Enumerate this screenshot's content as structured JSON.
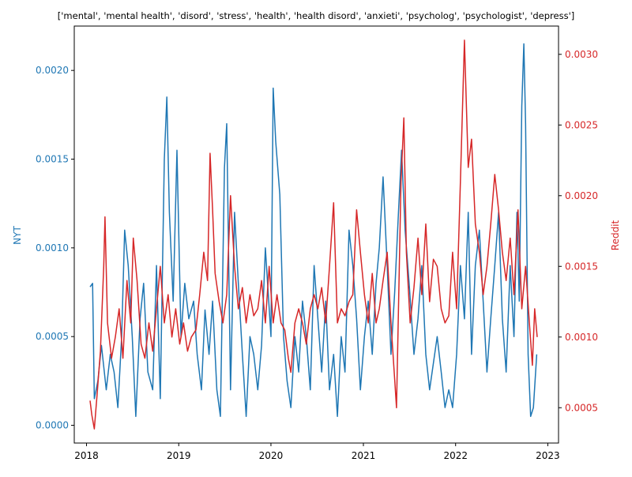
{
  "chart_data": {
    "type": "line",
    "title": "['mental', 'mental health', 'disord', 'stress', 'health', 'health disord', 'anxieti', 'psycholog', 'psychologist', 'depress']",
    "x_range": [
      "2018-01-15",
      "2022-11-20"
    ],
    "x_ticks": [
      "2018",
      "2019",
      "2020",
      "2021",
      "2022",
      "2023"
    ],
    "y_left": {
      "label": "NYT",
      "color": "#1f77b4",
      "ylim": [
        -0.0001,
        0.00225
      ],
      "ticks": [
        "0.0000",
        "0.0005",
        "0.0010",
        "0.0015",
        "0.0020"
      ]
    },
    "y_right": {
      "label": "Reddit",
      "color": "#d62728",
      "ylim": [
        0.00025,
        0.0032
      ],
      "ticks": [
        "0.0005",
        "0.0010",
        "0.0015",
        "0.0020",
        "0.0025",
        "0.0030"
      ]
    },
    "series": [
      {
        "name": "NYT",
        "axis": "left",
        "color": "#1f77b4",
        "points": [
          [
            "2018-01-15",
            0.00078
          ],
          [
            "2018-01-25",
            0.0008
          ],
          [
            "2018-02-01",
            0.00015
          ],
          [
            "2018-02-15",
            0.00025
          ],
          [
            "2018-03-01",
            0.00045
          ],
          [
            "2018-03-20",
            0.0002
          ],
          [
            "2018-04-05",
            0.0004
          ],
          [
            "2018-04-20",
            0.0003
          ],
          [
            "2018-05-05",
            0.0001
          ],
          [
            "2018-05-20",
            0.0005
          ],
          [
            "2018-06-01",
            0.0011
          ],
          [
            "2018-06-15",
            0.0009
          ],
          [
            "2018-07-01",
            0.0005
          ],
          [
            "2018-07-15",
            5e-05
          ],
          [
            "2018-08-01",
            0.0006
          ],
          [
            "2018-08-15",
            0.0008
          ],
          [
            "2018-09-01",
            0.0003
          ],
          [
            "2018-09-20",
            0.0002
          ],
          [
            "2018-10-05",
            0.0009
          ],
          [
            "2018-10-20",
            0.00015
          ],
          [
            "2018-11-05",
            0.0015
          ],
          [
            "2018-11-15",
            0.00185
          ],
          [
            "2018-11-25",
            0.0012
          ],
          [
            "2018-12-10",
            0.0007
          ],
          [
            "2018-12-25",
            0.00155
          ],
          [
            "2019-01-10",
            0.0005
          ],
          [
            "2019-01-25",
            0.0008
          ],
          [
            "2019-02-10",
            0.0006
          ],
          [
            "2019-03-01",
            0.0007
          ],
          [
            "2019-03-15",
            0.0004
          ],
          [
            "2019-04-01",
            0.0002
          ],
          [
            "2019-04-15",
            0.00065
          ],
          [
            "2019-05-01",
            0.0004
          ],
          [
            "2019-05-15",
            0.0007
          ],
          [
            "2019-06-01",
            0.0002
          ],
          [
            "2019-06-15",
            5e-05
          ],
          [
            "2019-07-01",
            0.00145
          ],
          [
            "2019-07-10",
            0.0017
          ],
          [
            "2019-07-25",
            0.0002
          ],
          [
            "2019-08-10",
            0.0012
          ],
          [
            "2019-08-25",
            0.0008
          ],
          [
            "2019-09-10",
            0.0004
          ],
          [
            "2019-09-25",
            5e-05
          ],
          [
            "2019-10-10",
            0.0005
          ],
          [
            "2019-10-25",
            0.0004
          ],
          [
            "2019-11-10",
            0.0002
          ],
          [
            "2019-11-25",
            0.00045
          ],
          [
            "2019-12-10",
            0.001
          ],
          [
            "2020-01-01",
            0.0005
          ],
          [
            "2020-01-10",
            0.0019
          ],
          [
            "2020-01-20",
            0.0016
          ],
          [
            "2020-02-05",
            0.0013
          ],
          [
            "2020-02-20",
            0.0005
          ],
          [
            "2020-03-05",
            0.00025
          ],
          [
            "2020-03-20",
            0.0001
          ],
          [
            "2020-04-05",
            0.0005
          ],
          [
            "2020-04-20",
            0.0003
          ],
          [
            "2020-05-05",
            0.0007
          ],
          [
            "2020-05-20",
            0.0005
          ],
          [
            "2020-06-05",
            0.0002
          ],
          [
            "2020-06-20",
            0.0009
          ],
          [
            "2020-07-05",
            0.0006
          ],
          [
            "2020-07-20",
            0.0003
          ],
          [
            "2020-08-05",
            0.0007
          ],
          [
            "2020-08-20",
            0.0002
          ],
          [
            "2020-09-05",
            0.0004
          ],
          [
            "2020-09-20",
            5e-05
          ],
          [
            "2020-10-05",
            0.0005
          ],
          [
            "2020-10-20",
            0.0003
          ],
          [
            "2020-11-05",
            0.0011
          ],
          [
            "2020-11-20",
            0.0009
          ],
          [
            "2020-12-05",
            0.0006
          ],
          [
            "2020-12-20",
            0.0002
          ],
          [
            "2021-01-05",
            0.0005
          ],
          [
            "2021-01-20",
            0.0007
          ],
          [
            "2021-02-05",
            0.0004
          ],
          [
            "2021-02-20",
            0.0008
          ],
          [
            "2021-03-05",
            0.001
          ],
          [
            "2021-03-20",
            0.0014
          ],
          [
            "2021-04-05",
            0.0009
          ],
          [
            "2021-04-20",
            0.0004
          ],
          [
            "2021-05-05",
            0.00075
          ],
          [
            "2021-05-20",
            0.0012
          ],
          [
            "2021-06-01",
            0.00155
          ],
          [
            "2021-06-15",
            0.0011
          ],
          [
            "2021-07-01",
            0.0008
          ],
          [
            "2021-07-20",
            0.0004
          ],
          [
            "2021-08-05",
            0.0006
          ],
          [
            "2021-08-20",
            0.0009
          ],
          [
            "2021-09-05",
            0.0004
          ],
          [
            "2021-09-20",
            0.0002
          ],
          [
            "2021-10-05",
            0.00035
          ],
          [
            "2021-10-20",
            0.0005
          ],
          [
            "2021-11-05",
            0.0003
          ],
          [
            "2021-11-20",
            0.0001
          ],
          [
            "2021-12-05",
            0.0002
          ],
          [
            "2021-12-20",
            0.0001
          ],
          [
            "2022-01-05",
            0.0004
          ],
          [
            "2022-01-20",
            0.0009
          ],
          [
            "2022-02-05",
            0.0006
          ],
          [
            "2022-02-20",
            0.0012
          ],
          [
            "2022-03-05",
            0.0004
          ],
          [
            "2022-03-20",
            0.0009
          ],
          [
            "2022-04-05",
            0.0011
          ],
          [
            "2022-04-20",
            0.0007
          ],
          [
            "2022-05-05",
            0.0003
          ],
          [
            "2022-05-20",
            0.0006
          ],
          [
            "2022-06-05",
            0.0009
          ],
          [
            "2022-06-20",
            0.0012
          ],
          [
            "2022-07-05",
            0.0006
          ],
          [
            "2022-07-20",
            0.0003
          ],
          [
            "2022-08-05",
            0.0009
          ],
          [
            "2022-08-20",
            0.0005
          ],
          [
            "2022-09-01",
            0.0012
          ],
          [
            "2022-09-10",
            0.0007
          ],
          [
            "2022-09-20",
            0.0018
          ],
          [
            "2022-09-28",
            0.00215
          ],
          [
            "2022-10-05",
            0.0017
          ],
          [
            "2022-10-15",
            0.0004
          ],
          [
            "2022-10-25",
            5e-05
          ],
          [
            "2022-11-05",
            0.0001
          ],
          [
            "2022-11-18",
            0.0004
          ]
        ]
      },
      {
        "name": "Reddit",
        "axis": "right",
        "color": "#d62728",
        "points": [
          [
            "2018-01-15",
            0.00055
          ],
          [
            "2018-01-22",
            0.00045
          ],
          [
            "2018-02-01",
            0.00035
          ],
          [
            "2018-02-12",
            0.0006
          ],
          [
            "2018-02-25",
            0.0009
          ],
          [
            "2018-03-10",
            0.0015
          ],
          [
            "2018-03-15",
            0.00185
          ],
          [
            "2018-03-25",
            0.0011
          ],
          [
            "2018-04-10",
            0.00085
          ],
          [
            "2018-04-25",
            0.001
          ],
          [
            "2018-05-10",
            0.0012
          ],
          [
            "2018-05-25",
            0.00085
          ],
          [
            "2018-06-10",
            0.0014
          ],
          [
            "2018-06-25",
            0.0011
          ],
          [
            "2018-07-05",
            0.0017
          ],
          [
            "2018-07-20",
            0.0014
          ],
          [
            "2018-08-05",
            0.00095
          ],
          [
            "2018-08-20",
            0.00085
          ],
          [
            "2018-09-05",
            0.0011
          ],
          [
            "2018-09-20",
            0.0009
          ],
          [
            "2018-10-05",
            0.0012
          ],
          [
            "2018-10-20",
            0.0015
          ],
          [
            "2018-11-05",
            0.0011
          ],
          [
            "2018-11-20",
            0.0013
          ],
          [
            "2018-12-05",
            0.001
          ],
          [
            "2018-12-20",
            0.0012
          ],
          [
            "2019-01-05",
            0.00095
          ],
          [
            "2019-01-20",
            0.0011
          ],
          [
            "2019-02-05",
            0.0009
          ],
          [
            "2019-02-20",
            0.001
          ],
          [
            "2019-03-10",
            0.00105
          ],
          [
            "2019-03-25",
            0.0013
          ],
          [
            "2019-04-10",
            0.0016
          ],
          [
            "2019-04-25",
            0.0014
          ],
          [
            "2019-05-05",
            0.0023
          ],
          [
            "2019-05-15",
            0.0019
          ],
          [
            "2019-05-25",
            0.00145
          ],
          [
            "2019-06-10",
            0.00125
          ],
          [
            "2019-06-25",
            0.0011
          ],
          [
            "2019-07-10",
            0.0013
          ],
          [
            "2019-07-25",
            0.002
          ],
          [
            "2019-08-10",
            0.0015
          ],
          [
            "2019-08-25",
            0.0012
          ],
          [
            "2019-09-10",
            0.00135
          ],
          [
            "2019-09-25",
            0.0011
          ],
          [
            "2019-10-10",
            0.0013
          ],
          [
            "2019-10-25",
            0.00115
          ],
          [
            "2019-11-10",
            0.0012
          ],
          [
            "2019-11-25",
            0.0014
          ],
          [
            "2019-12-10",
            0.0011
          ],
          [
            "2019-12-25",
            0.0015
          ],
          [
            "2020-01-10",
            0.0011
          ],
          [
            "2020-01-25",
            0.0013
          ],
          [
            "2020-02-10",
            0.0011
          ],
          [
            "2020-02-25",
            0.00105
          ],
          [
            "2020-03-10",
            0.00085
          ],
          [
            "2020-03-20",
            0.00075
          ],
          [
            "2020-04-05",
            0.0011
          ],
          [
            "2020-04-20",
            0.0012
          ],
          [
            "2020-05-05",
            0.0011
          ],
          [
            "2020-05-20",
            0.00095
          ],
          [
            "2020-06-05",
            0.0012
          ],
          [
            "2020-06-20",
            0.0013
          ],
          [
            "2020-07-05",
            0.0012
          ],
          [
            "2020-07-20",
            0.00135
          ],
          [
            "2020-08-05",
            0.0011
          ],
          [
            "2020-08-20",
            0.0015
          ],
          [
            "2020-09-05",
            0.00195
          ],
          [
            "2020-09-20",
            0.0011
          ],
          [
            "2020-10-05",
            0.0012
          ],
          [
            "2020-10-20",
            0.00115
          ],
          [
            "2020-11-05",
            0.00125
          ],
          [
            "2020-11-20",
            0.0013
          ],
          [
            "2020-12-05",
            0.0019
          ],
          [
            "2020-12-20",
            0.0016
          ],
          [
            "2021-01-05",
            0.0013
          ],
          [
            "2021-01-20",
            0.0011
          ],
          [
            "2021-02-05",
            0.00145
          ],
          [
            "2021-02-20",
            0.0011
          ],
          [
            "2021-03-05",
            0.0012
          ],
          [
            "2021-03-20",
            0.0014
          ],
          [
            "2021-04-05",
            0.0016
          ],
          [
            "2021-04-20",
            0.0011
          ],
          [
            "2021-05-05",
            0.0007
          ],
          [
            "2021-05-12",
            0.0005
          ],
          [
            "2021-05-20",
            0.0012
          ],
          [
            "2021-05-30",
            0.0021
          ],
          [
            "2021-06-10",
            0.00255
          ],
          [
            "2021-06-20",
            0.0016
          ],
          [
            "2021-07-05",
            0.0011
          ],
          [
            "2021-07-20",
            0.00135
          ],
          [
            "2021-08-05",
            0.0017
          ],
          [
            "2021-08-20",
            0.0013
          ],
          [
            "2021-09-05",
            0.0018
          ],
          [
            "2021-09-20",
            0.00125
          ],
          [
            "2021-10-05",
            0.00155
          ],
          [
            "2021-10-20",
            0.0015
          ],
          [
            "2021-11-05",
            0.0012
          ],
          [
            "2021-11-20",
            0.0011
          ],
          [
            "2021-12-05",
            0.00115
          ],
          [
            "2021-12-20",
            0.0016
          ],
          [
            "2022-01-05",
            0.0012
          ],
          [
            "2022-01-20",
            0.0021
          ],
          [
            "2022-02-05",
            0.0031
          ],
          [
            "2022-02-20",
            0.0022
          ],
          [
            "2022-03-05",
            0.0024
          ],
          [
            "2022-03-20",
            0.0018
          ],
          [
            "2022-04-05",
            0.0016
          ],
          [
            "2022-04-20",
            0.0013
          ],
          [
            "2022-05-05",
            0.0015
          ],
          [
            "2022-05-20",
            0.0018
          ],
          [
            "2022-06-05",
            0.00215
          ],
          [
            "2022-06-20",
            0.0019
          ],
          [
            "2022-07-05",
            0.0016
          ],
          [
            "2022-07-20",
            0.0014
          ],
          [
            "2022-08-05",
            0.0017
          ],
          [
            "2022-08-20",
            0.0013
          ],
          [
            "2022-09-05",
            0.0019
          ],
          [
            "2022-09-20",
            0.0012
          ],
          [
            "2022-10-05",
            0.0015
          ],
          [
            "2022-10-20",
            0.0011
          ],
          [
            "2022-11-01",
            0.0008
          ],
          [
            "2022-11-10",
            0.0012
          ],
          [
            "2022-11-20",
            0.001
          ]
        ]
      }
    ],
    "grid": false,
    "legend": "none"
  }
}
